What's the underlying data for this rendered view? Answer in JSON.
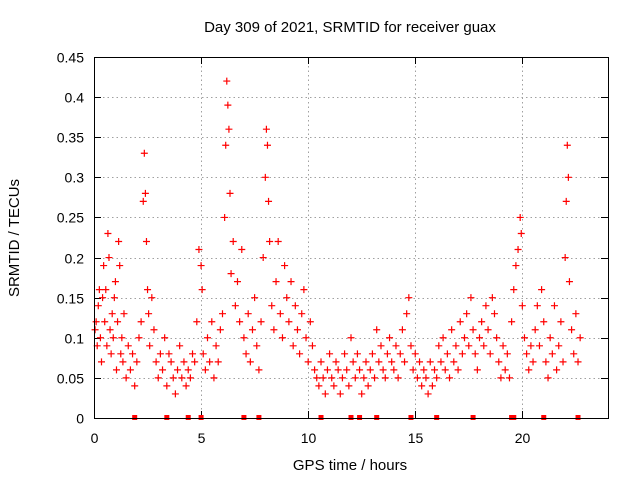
{
  "chart_data": {
    "type": "scatter",
    "title": "Day 309 of 2021, SRMTID for receiver guax",
    "xlabel": "GPS time / hours",
    "ylabel": "SRMTID / TECUs",
    "xlim": [
      0,
      24
    ],
    "ylim": [
      0,
      0.45
    ],
    "grid": true,
    "marker": "+",
    "marker_color": "#ff0000",
    "x_ticks": [
      0,
      5,
      10,
      15,
      20
    ],
    "x_tick_labels": [
      "0",
      "5",
      "10",
      "15",
      "20"
    ],
    "y_ticks": [
      0,
      0.05,
      0.1,
      0.15,
      0.2,
      0.25,
      0.3,
      0.35,
      0.4,
      0.45
    ],
    "y_tick_labels": [
      "0",
      "0.05",
      "0.1",
      "0.15",
      "0.2",
      "0.25",
      "0.3",
      "0.35",
      "0.4",
      "0.45"
    ],
    "zero_markers_x": [
      1.9,
      3.4,
      4.4,
      5.0,
      7.0,
      7.7,
      10.6,
      12.0,
      12.4,
      13.2,
      14.8,
      16.0,
      17.7,
      19.5,
      19.6,
      21.0,
      22.6
    ],
    "series": [
      {
        "name": "SRMTID",
        "points": [
          [
            0.05,
            0.11
          ],
          [
            0.1,
            0.12
          ],
          [
            0.15,
            0.09
          ],
          [
            0.2,
            0.14
          ],
          [
            0.25,
            0.16
          ],
          [
            0.3,
            0.1
          ],
          [
            0.35,
            0.07
          ],
          [
            0.4,
            0.15
          ],
          [
            0.45,
            0.19
          ],
          [
            0.5,
            0.12
          ],
          [
            0.55,
            0.16
          ],
          [
            0.6,
            0.09
          ],
          [
            0.65,
            0.23
          ],
          [
            0.7,
            0.2
          ],
          [
            0.75,
            0.11
          ],
          [
            0.8,
            0.08
          ],
          [
            0.85,
            0.13
          ],
          [
            0.9,
            0.1
          ],
          [
            0.95,
            0.15
          ],
          [
            1.0,
            0.17
          ],
          [
            1.05,
            0.06
          ],
          [
            1.1,
            0.12
          ],
          [
            1.15,
            0.22
          ],
          [
            1.2,
            0.19
          ],
          [
            1.25,
            0.08
          ],
          [
            1.3,
            0.1
          ],
          [
            1.35,
            0.07
          ],
          [
            1.4,
            0.13
          ],
          [
            1.5,
            0.05
          ],
          [
            1.6,
            0.09
          ],
          [
            1.7,
            0.06
          ],
          [
            1.8,
            0.08
          ],
          [
            1.9,
            0.04
          ],
          [
            2.0,
            0.07
          ],
          [
            2.1,
            0.1
          ],
          [
            2.2,
            0.12
          ],
          [
            2.3,
            0.27
          ],
          [
            2.35,
            0.33
          ],
          [
            2.4,
            0.28
          ],
          [
            2.45,
            0.22
          ],
          [
            2.5,
            0.16
          ],
          [
            2.55,
            0.13
          ],
          [
            2.6,
            0.09
          ],
          [
            2.7,
            0.15
          ],
          [
            2.8,
            0.11
          ],
          [
            2.9,
            0.07
          ],
          [
            3.0,
            0.05
          ],
          [
            3.1,
            0.08
          ],
          [
            3.2,
            0.06
          ],
          [
            3.3,
            0.1
          ],
          [
            3.4,
            0.04
          ],
          [
            3.5,
            0.08
          ],
          [
            3.6,
            0.07
          ],
          [
            3.7,
            0.05
          ],
          [
            3.8,
            0.03
          ],
          [
            3.9,
            0.06
          ],
          [
            4.0,
            0.09
          ],
          [
            4.1,
            0.05
          ],
          [
            4.2,
            0.07
          ],
          [
            4.3,
            0.04
          ],
          [
            4.4,
            0.06
          ],
          [
            4.5,
            0.05
          ],
          [
            4.6,
            0.08
          ],
          [
            4.7,
            0.07
          ],
          [
            4.8,
            0.12
          ],
          [
            4.9,
            0.21
          ],
          [
            5.0,
            0.19
          ],
          [
            5.05,
            0.16
          ],
          [
            5.1,
            0.08
          ],
          [
            5.2,
            0.06
          ],
          [
            5.3,
            0.1
          ],
          [
            5.4,
            0.07
          ],
          [
            5.5,
            0.12
          ],
          [
            5.6,
            0.05
          ],
          [
            5.7,
            0.09
          ],
          [
            5.8,
            0.07
          ],
          [
            5.9,
            0.11
          ],
          [
            6.0,
            0.13
          ],
          [
            6.1,
            0.25
          ],
          [
            6.15,
            0.34
          ],
          [
            6.2,
            0.42
          ],
          [
            6.25,
            0.39
          ],
          [
            6.3,
            0.36
          ],
          [
            6.35,
            0.28
          ],
          [
            6.4,
            0.18
          ],
          [
            6.5,
            0.22
          ],
          [
            6.6,
            0.14
          ],
          [
            6.7,
            0.17
          ],
          [
            6.8,
            0.12
          ],
          [
            6.9,
            0.21
          ],
          [
            7.0,
            0.1
          ],
          [
            7.1,
            0.08
          ],
          [
            7.2,
            0.13
          ],
          [
            7.3,
            0.07
          ],
          [
            7.4,
            0.11
          ],
          [
            7.5,
            0.15
          ],
          [
            7.6,
            0.09
          ],
          [
            7.7,
            0.06
          ],
          [
            7.8,
            0.12
          ],
          [
            7.9,
            0.2
          ],
          [
            8.0,
            0.3
          ],
          [
            8.05,
            0.36
          ],
          [
            8.1,
            0.34
          ],
          [
            8.15,
            0.27
          ],
          [
            8.2,
            0.22
          ],
          [
            8.3,
            0.14
          ],
          [
            8.4,
            0.11
          ],
          [
            8.5,
            0.17
          ],
          [
            8.6,
            0.22
          ],
          [
            8.7,
            0.13
          ],
          [
            8.8,
            0.1
          ],
          [
            8.9,
            0.19
          ],
          [
            9.0,
            0.15
          ],
          [
            9.1,
            0.12
          ],
          [
            9.2,
            0.17
          ],
          [
            9.3,
            0.09
          ],
          [
            9.4,
            0.14
          ],
          [
            9.5,
            0.11
          ],
          [
            9.6,
            0.08
          ],
          [
            9.7,
            0.13
          ],
          [
            9.8,
            0.16
          ],
          [
            9.9,
            0.1
          ],
          [
            10.0,
            0.07
          ],
          [
            10.1,
            0.12
          ],
          [
            10.2,
            0.09
          ],
          [
            10.3,
            0.06
          ],
          [
            10.4,
            0.05
          ],
          [
            10.5,
            0.04
          ],
          [
            10.6,
            0.07
          ],
          [
            10.7,
            0.05
          ],
          [
            10.8,
            0.03
          ],
          [
            10.9,
            0.06
          ],
          [
            11.0,
            0.08
          ],
          [
            11.1,
            0.05
          ],
          [
            11.2,
            0.04
          ],
          [
            11.3,
            0.07
          ],
          [
            11.4,
            0.06
          ],
          [
            11.5,
            0.03
          ],
          [
            11.6,
            0.05
          ],
          [
            11.7,
            0.08
          ],
          [
            11.8,
            0.06
          ],
          [
            11.9,
            0.04
          ],
          [
            12.0,
            0.1
          ],
          [
            12.1,
            0.07
          ],
          [
            12.2,
            0.05
          ],
          [
            12.3,
            0.08
          ],
          [
            12.4,
            0.06
          ],
          [
            12.5,
            0.03
          ],
          [
            12.6,
            0.05
          ],
          [
            12.7,
            0.07
          ],
          [
            12.8,
            0.04
          ],
          [
            12.9,
            0.06
          ],
          [
            13.0,
            0.08
          ],
          [
            13.1,
            0.05
          ],
          [
            13.2,
            0.11
          ],
          [
            13.3,
            0.07
          ],
          [
            13.4,
            0.09
          ],
          [
            13.5,
            0.06
          ],
          [
            13.6,
            0.05
          ],
          [
            13.7,
            0.08
          ],
          [
            13.8,
            0.1
          ],
          [
            13.9,
            0.07
          ],
          [
            14.0,
            0.06
          ],
          [
            14.1,
            0.09
          ],
          [
            14.2,
            0.05
          ],
          [
            14.3,
            0.08
          ],
          [
            14.4,
            0.11
          ],
          [
            14.5,
            0.07
          ],
          [
            14.6,
            0.13
          ],
          [
            14.7,
            0.15
          ],
          [
            14.8,
            0.09
          ],
          [
            14.9,
            0.06
          ],
          [
            15.0,
            0.08
          ],
          [
            15.1,
            0.05
          ],
          [
            15.2,
            0.07
          ],
          [
            15.3,
            0.04
          ],
          [
            15.4,
            0.06
          ],
          [
            15.5,
            0.05
          ],
          [
            15.6,
            0.03
          ],
          [
            15.7,
            0.07
          ],
          [
            15.8,
            0.04
          ],
          [
            15.9,
            0.06
          ],
          [
            16.0,
            0.05
          ],
          [
            16.1,
            0.09
          ],
          [
            16.2,
            0.07
          ],
          [
            16.3,
            0.1
          ],
          [
            16.4,
            0.06
          ],
          [
            16.5,
            0.08
          ],
          [
            16.6,
            0.05
          ],
          [
            16.7,
            0.11
          ],
          [
            16.8,
            0.07
          ],
          [
            16.9,
            0.09
          ],
          [
            17.0,
            0.06
          ],
          [
            17.1,
            0.12
          ],
          [
            17.2,
            0.08
          ],
          [
            17.3,
            0.1
          ],
          [
            17.4,
            0.13
          ],
          [
            17.5,
            0.09
          ],
          [
            17.6,
            0.15
          ],
          [
            17.7,
            0.11
          ],
          [
            17.8,
            0.08
          ],
          [
            17.9,
            0.06
          ],
          [
            18.0,
            0.1
          ],
          [
            18.1,
            0.12
          ],
          [
            18.2,
            0.09
          ],
          [
            18.3,
            0.14
          ],
          [
            18.4,
            0.11
          ],
          [
            18.5,
            0.08
          ],
          [
            18.6,
            0.15
          ],
          [
            18.7,
            0.13
          ],
          [
            18.8,
            0.1
          ],
          [
            18.9,
            0.07
          ],
          [
            19.0,
            0.05
          ],
          [
            19.1,
            0.09
          ],
          [
            19.2,
            0.06
          ],
          [
            19.3,
            0.08
          ],
          [
            19.4,
            0.05
          ],
          [
            19.5,
            0.12
          ],
          [
            19.6,
            0.16
          ],
          [
            19.7,
            0.19
          ],
          [
            19.8,
            0.21
          ],
          [
            19.9,
            0.25
          ],
          [
            19.95,
            0.23
          ],
          [
            20.0,
            0.14
          ],
          [
            20.1,
            0.1
          ],
          [
            20.2,
            0.08
          ],
          [
            20.3,
            0.06
          ],
          [
            20.4,
            0.09
          ],
          [
            20.5,
            0.07
          ],
          [
            20.6,
            0.11
          ],
          [
            20.7,
            0.14
          ],
          [
            20.8,
            0.09
          ],
          [
            20.9,
            0.16
          ],
          [
            21.0,
            0.12
          ],
          [
            21.1,
            0.07
          ],
          [
            21.2,
            0.05
          ],
          [
            21.3,
            0.1
          ],
          [
            21.4,
            0.08
          ],
          [
            21.5,
            0.14
          ],
          [
            21.6,
            0.06
          ],
          [
            21.7,
            0.09
          ],
          [
            21.8,
            0.12
          ],
          [
            21.9,
            0.07
          ],
          [
            22.0,
            0.2
          ],
          [
            22.05,
            0.27
          ],
          [
            22.1,
            0.34
          ],
          [
            22.15,
            0.3
          ],
          [
            22.2,
            0.17
          ],
          [
            22.3,
            0.11
          ],
          [
            22.4,
            0.08
          ],
          [
            22.5,
            0.13
          ],
          [
            22.6,
            0.07
          ],
          [
            22.7,
            0.1
          ]
        ]
      }
    ]
  }
}
